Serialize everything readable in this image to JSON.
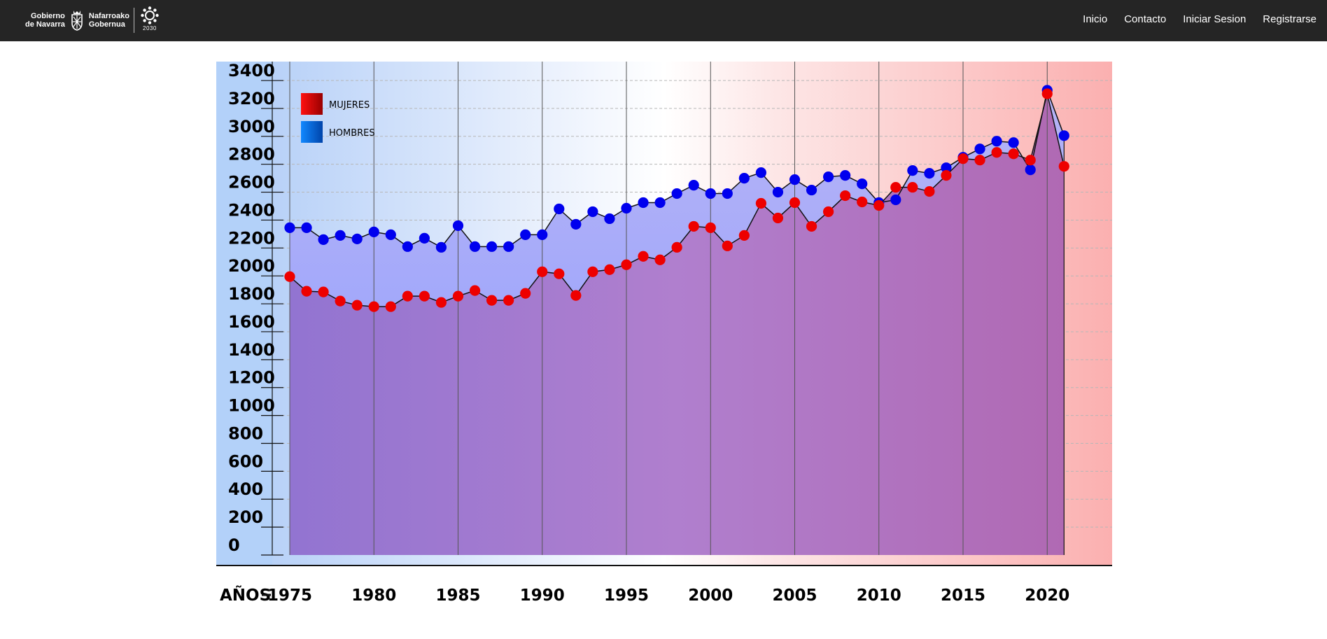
{
  "header": {
    "logo": {
      "gobierno_line1": "Gobierno",
      "gobierno_line2": "de Navarra",
      "nafarroako_line1": "Nafarroako",
      "nafarroako_line2": "Gobernua",
      "badge_year": "2030"
    },
    "nav": [
      "Inicio",
      "Contacto",
      "Iniciar Sesion",
      "Registrarse"
    ]
  },
  "colors": {
    "topbar": "#252525",
    "mujeres": "#ee0000",
    "hombres": "#0000ee"
  },
  "chart_data": {
    "type": "area",
    "x_prefix_label": "AÑOS",
    "x_tick_labels": [
      "1975",
      "1980",
      "1985",
      "1990",
      "1995",
      "2000",
      "2005",
      "2010",
      "2015",
      "2020"
    ],
    "y_tick_labels": [
      "0",
      "200",
      "400",
      "600",
      "800",
      "1000",
      "1200",
      "1400",
      "1600",
      "1800",
      "2000",
      "2200",
      "2400",
      "2600",
      "2800",
      "3000",
      "3200",
      "3400"
    ],
    "ylim": [
      0,
      3600
    ],
    "grid": true,
    "legend_position": "top-left",
    "x": [
      1975,
      1976,
      1977,
      1978,
      1979,
      1980,
      1981,
      1982,
      1983,
      1984,
      1985,
      1986,
      1987,
      1988,
      1989,
      1990,
      1991,
      1992,
      1993,
      1994,
      1995,
      1996,
      1997,
      1998,
      1999,
      2000,
      2001,
      2002,
      2003,
      2004,
      2005,
      2006,
      2007,
      2008,
      2009,
      2010,
      2011,
      2012,
      2013,
      2014,
      2015,
      2016,
      2017,
      2018,
      2019,
      2020,
      2021
    ],
    "series": [
      {
        "name": "MUJERES",
        "color": "#ee0000",
        "values": [
          1995,
          1890,
          1885,
          1820,
          1790,
          1780,
          1780,
          1855,
          1855,
          1810,
          1855,
          1895,
          1825,
          1825,
          1875,
          2030,
          2015,
          1860,
          2030,
          2045,
          2080,
          2140,
          2115,
          2205,
          2355,
          2345,
          2215,
          2290,
          2520,
          2415,
          2525,
          2355,
          2460,
          2575,
          2530,
          2505,
          2635,
          2635,
          2605,
          2720,
          2840,
          2830,
          2885,
          2875,
          2830,
          3305,
          2785
        ],
        "values_note": ""
      },
      {
        "name": "HOMBRES",
        "color": "#0000ee",
        "values": [
          2345,
          2345,
          2260,
          2290,
          2265,
          2315,
          2295,
          2210,
          2270,
          2205,
          2360,
          2210,
          2210,
          2210,
          2295,
          2295,
          2480,
          2370,
          2460,
          2410,
          2485,
          2525,
          2525,
          2590,
          2650,
          2590,
          2590,
          2700,
          2740,
          2600,
          2690,
          2615,
          2710,
          2720,
          2660,
          2525,
          2545,
          2755,
          2735,
          2775,
          2850,
          2910,
          2965,
          2955,
          2760,
          3330,
          3005
        ]
      }
    ]
  }
}
